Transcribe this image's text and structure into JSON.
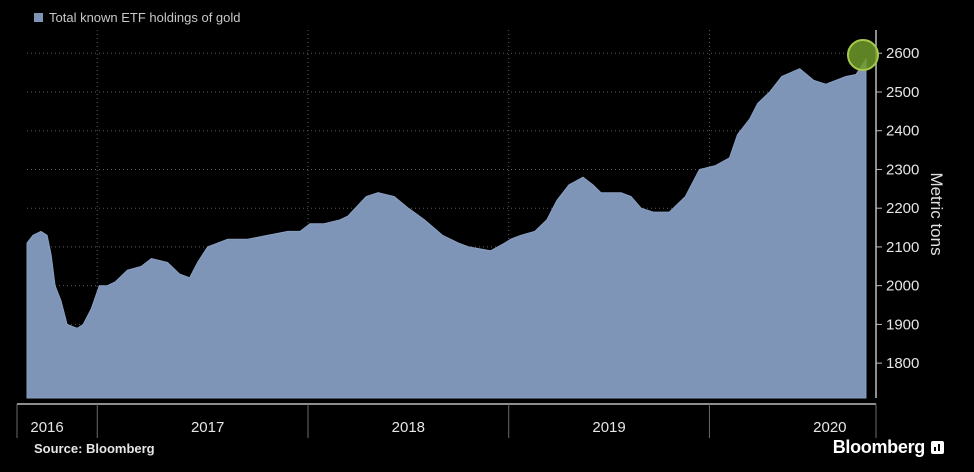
{
  "legend": {
    "label": "Total known ETF holdings of gold",
    "color": "#7f95b8"
  },
  "footer": {
    "source": "Source: Bloomberg",
    "brand": "Bloomberg"
  },
  "chart_data": {
    "type": "area",
    "title": "",
    "xlabel": "",
    "ylabel": "Metric tons",
    "y_axis_side": "right",
    "ylim": [
      1710,
      2660
    ],
    "xlim": [
      2016.0,
      2020.2
    ],
    "y_ticks": [
      1800,
      1900,
      2000,
      2100,
      2200,
      2300,
      2400,
      2500,
      2600
    ],
    "x_ticks": [
      {
        "label": "2016",
        "x": 2016.1
      },
      {
        "label": "2017",
        "x": 2016.9
      },
      {
        "label": "2018",
        "x": 2017.9
      },
      {
        "label": "2019",
        "x": 2018.9
      },
      {
        "label": "2020",
        "x": 2020.0
      }
    ],
    "year_dividers": [
      2016.35,
      2017.4,
      2018.4,
      2019.4
    ],
    "grid": true,
    "highlight_point": {
      "x": 2020.18,
      "y": 2580
    },
    "series": [
      {
        "name": "Total known ETF holdings of gold",
        "color": "#7f95b8",
        "x": [
          2016.0,
          2016.03,
          2016.07,
          2016.1,
          2016.12,
          2016.14,
          2016.17,
          2016.2,
          2016.25,
          2016.28,
          2016.32,
          2016.36,
          2016.4,
          2016.44,
          2016.5,
          2016.57,
          2016.62,
          2016.7,
          2016.76,
          2016.81,
          2016.85,
          2016.9,
          2017.0,
          2017.1,
          2017.2,
          2017.3,
          2017.36,
          2017.41,
          2017.48,
          2017.56,
          2017.6,
          2017.69,
          2017.75,
          2017.83,
          2017.9,
          2017.98,
          2018.07,
          2018.15,
          2018.2,
          2018.31,
          2018.38,
          2018.41,
          2018.46,
          2018.53,
          2018.59,
          2018.64,
          2018.7,
          2018.77,
          2018.82,
          2018.86,
          2018.91,
          2018.96,
          2019.01,
          2019.06,
          2019.12,
          2019.2,
          2019.28,
          2019.35,
          2019.43,
          2019.5,
          2019.54,
          2019.6,
          2019.64,
          2019.7,
          2019.76,
          2019.85,
          2019.92,
          2019.98,
          2020.03,
          2020.08,
          2020.13,
          2020.18
        ],
        "y": [
          2110,
          2130,
          2140,
          2130,
          2080,
          2000,
          1960,
          1900,
          1890,
          1900,
          1940,
          2000,
          2000,
          2010,
          2040,
          2050,
          2070,
          2060,
          2030,
          2020,
          2060,
          2100,
          2120,
          2120,
          2130,
          2140,
          2140,
          2160,
          2160,
          2170,
          2180,
          2230,
          2240,
          2230,
          2200,
          2170,
          2130,
          2110,
          2100,
          2090,
          2110,
          2120,
          2130,
          2140,
          2170,
          2220,
          2260,
          2280,
          2260,
          2240,
          2240,
          2240,
          2230,
          2200,
          2190,
          2190,
          2230,
          2300,
          2310,
          2330,
          2390,
          2430,
          2470,
          2500,
          2540,
          2560,
          2530,
          2520,
          2530,
          2540,
          2545,
          2585
        ]
      }
    ]
  }
}
